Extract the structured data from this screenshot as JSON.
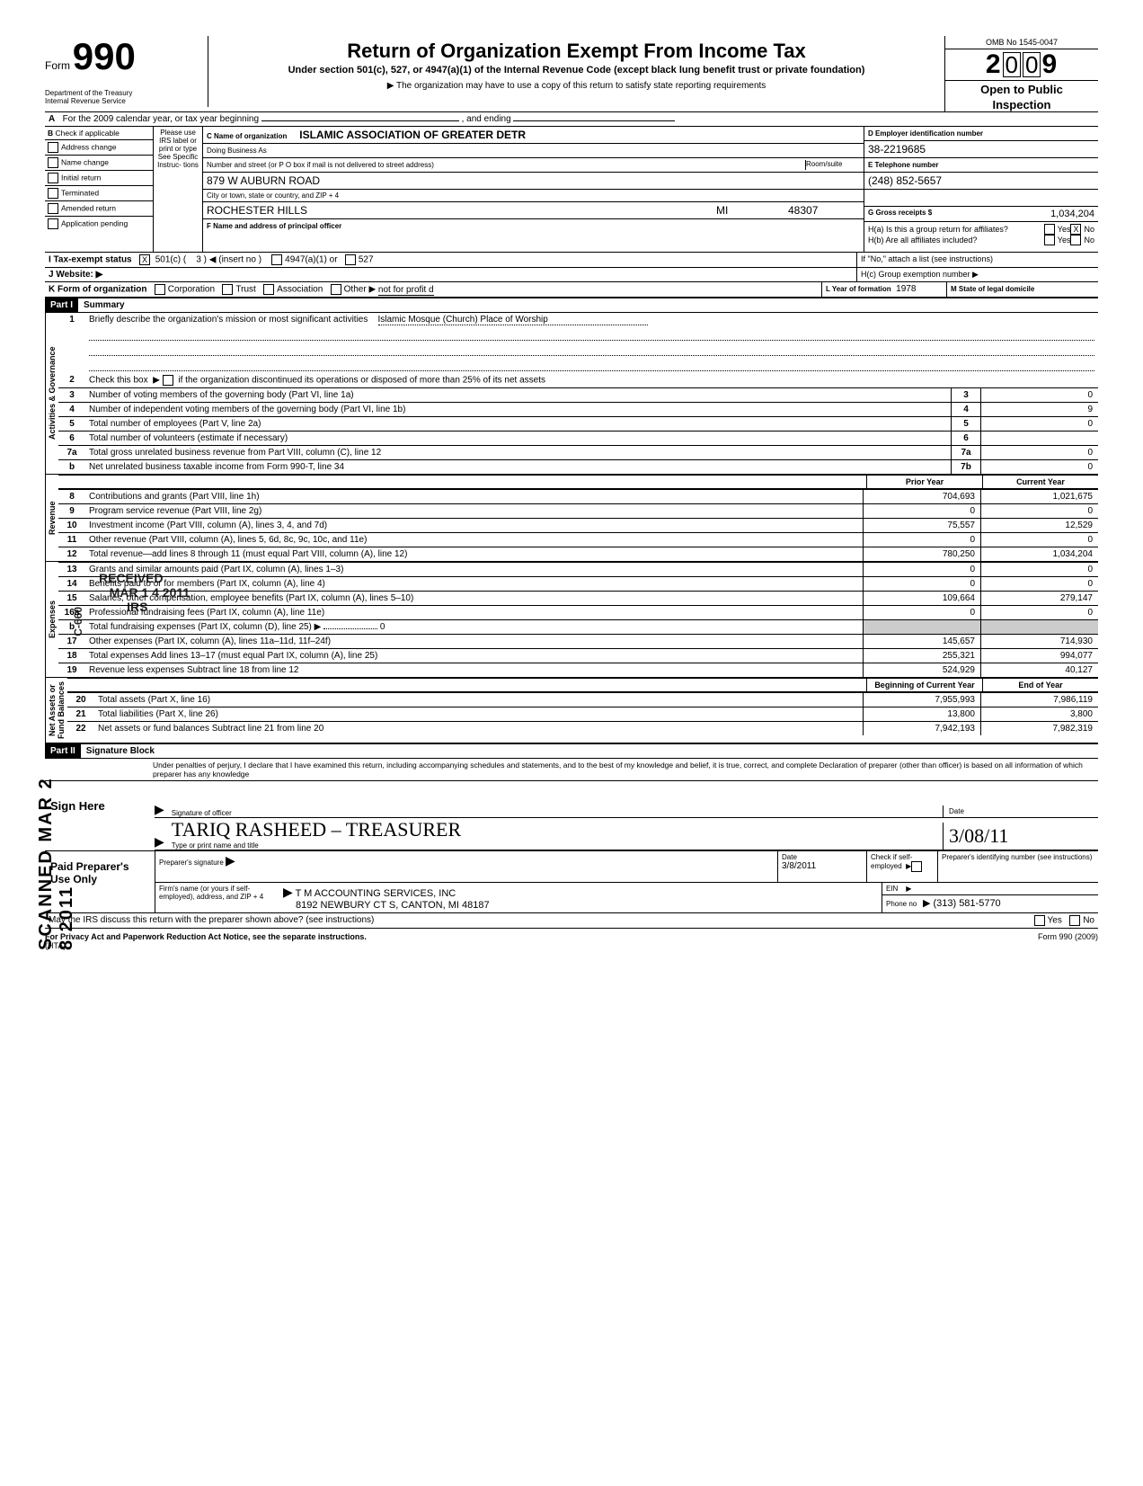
{
  "header": {
    "form_label": "Form",
    "form_number": "990",
    "omb": "OMB No 1545-0047",
    "year_digits": [
      "2",
      "0",
      "0",
      "9"
    ],
    "title": "Return of Organization Exempt From Income Tax",
    "subtitle": "Under section 501(c), 527, or 4947(a)(1) of the Internal Revenue Code (except black lung benefit trust or private foundation)",
    "arrow_note": "▶ The organization may have to use a copy of this return to satisfy state reporting requirements",
    "dept1": "Department of the Treasury",
    "dept2": "Internal Revenue Service",
    "open": "Open to Public",
    "inspection": "Inspection"
  },
  "lineA": {
    "text_pre": "For the 2009 calendar year, or tax year beginning",
    "text_mid": ", and ending"
  },
  "B": {
    "header": "Check if applicable",
    "items": [
      "Address change",
      "Name change",
      "Initial return",
      "Terminated",
      "Amended return",
      "Application pending"
    ],
    "please": "Please use IRS label or print or type See Specific Instruc- tions"
  },
  "C": {
    "label_name": "C  Name of organization",
    "name": "ISLAMIC ASSOCIATION OF GREATER DETR",
    "dba_label": "Doing Business As",
    "street_label": "Number and street (or P O box if mail is not delivered to street address)",
    "room_label": "Room/suite",
    "street": "879 W  AUBURN ROAD",
    "city_label": "City or town, state or country, and ZIP + 4",
    "city": "ROCHESTER HILLS",
    "state": "MI",
    "zip": "48307",
    "F_label": "F    Name and address of principal officer"
  },
  "D": {
    "label": "D   Employer identification number",
    "ein": "38-2219685",
    "E_label": "E   Telephone number",
    "phone": "(248) 852-5657",
    "G_label": "G   Gross receipts $",
    "gross": "1,034,204",
    "Ha": "H(a) Is this a group return for affiliates?",
    "Hb": "H(b) Are all affiliates included?",
    "Hb_note": "If \"No,\" attach a list  (see instructions)",
    "Hc": "H(c) Group exemption number  ▶",
    "yes": "Yes",
    "no": "No",
    "x": "X"
  },
  "I": {
    "label": "I    Tax-exempt status",
    "c501": "501(c) (",
    "insert": "3 ) ◀ (insert no )",
    "a4947": "4947(a)(1) or",
    "s527": "527",
    "x": "X"
  },
  "J": {
    "label": "J   Website: ▶"
  },
  "K": {
    "label": "K  Form of organization",
    "opts": [
      "Corporation",
      "Trust",
      "Association"
    ],
    "other_label": "Other ▶",
    "other_val": "not for profit d",
    "L_label": "L  Year of formation",
    "L_val": "1978",
    "M_label": "M State of legal domicile"
  },
  "part1": {
    "tab": "Part I",
    "title": "Summary",
    "line1_label": "Briefly describe the organization's mission or most significant activities",
    "line1_val": "Islamic Mosque (Church) Place of Worship",
    "line2": "Check this box  ▶        if the organization discontinued its operations or disposed of more than 25% of its net assets",
    "rows_simple": [
      {
        "n": "3",
        "d": "Number of voting members of the governing body (Part VI, line 1a)",
        "k": "3",
        "v": "0"
      },
      {
        "n": "4",
        "d": "Number of independent voting members of the governing body (Part VI, line 1b)",
        "k": "4",
        "v": "9"
      },
      {
        "n": "5",
        "d": "Total number of employees (Part V, line 2a)",
        "k": "5",
        "v": "0"
      },
      {
        "n": "6",
        "d": "Total number of volunteers (estimate if necessary)",
        "k": "6",
        "v": ""
      },
      {
        "n": "7a",
        "d": "Total gross unrelated business revenue from Part VIII, column (C), line 12",
        "k": "7a",
        "v": "0"
      },
      {
        "n": "b",
        "d": "Net unrelated business taxable income from Form 990-T, line 34",
        "k": "7b",
        "v": "0"
      }
    ],
    "prior_label": "Prior Year",
    "current_label": "Current Year",
    "rev_rows": [
      {
        "n": "8",
        "d": "Contributions and grants (Part VIII, line 1h)",
        "p": "704,693",
        "c": "1,021,675"
      },
      {
        "n": "9",
        "d": "Program service revenue (Part VIII, line 2g)",
        "p": "0",
        "c": "0"
      },
      {
        "n": "10",
        "d": "Investment income (Part VIII, column (A), lines 3, 4, and 7d)",
        "p": "75,557",
        "c": "12,529"
      },
      {
        "n": "11",
        "d": "Other revenue (Part VIII, column (A), lines 5, 6d, 8c, 9c, 10c, and 11e)",
        "p": "0",
        "c": "0"
      },
      {
        "n": "12",
        "d": "Total revenue—add lines 8 through 11 (must equal Part VIII, column (A), line 12)",
        "p": "780,250",
        "c": "1,034,204"
      }
    ],
    "exp_rows": [
      {
        "n": "13",
        "d": "Grants and similar amounts paid (Part IX, column (A), lines 1–3)",
        "p": "0",
        "c": "0"
      },
      {
        "n": "14",
        "d": "Benefits paid to or for members (Part IX, column (A), line 4)",
        "p": "0",
        "c": "0"
      },
      {
        "n": "15",
        "d": "Salaries, other compensation, employee benefits (Part IX, column (A), lines 5–10)",
        "p": "109,664",
        "c": "279,147"
      },
      {
        "n": "16a",
        "d": "Professional fundraising fees (Part IX, column (A), line 11e)",
        "p": "0",
        "c": "0"
      },
      {
        "n": "b",
        "d": "Total fundraising expenses (Part IX, column (D), line 25)  ▶",
        "p": "",
        "c": "",
        "inline": "0"
      },
      {
        "n": "17",
        "d": "Other expenses (Part IX, column (A), lines 11a–11d, 11f–24f)",
        "p": "145,657",
        "c": "714,930"
      },
      {
        "n": "18",
        "d": "Total expenses  Add lines 13–17 (must equal Part IX, column (A), line 25)",
        "p": "255,321",
        "c": "994,077"
      },
      {
        "n": "19",
        "d": "Revenue less expenses  Subtract line 18 from line 12",
        "p": "524,929",
        "c": "40,127"
      }
    ],
    "na_header_a": "Beginning of Current Year",
    "na_header_b": "End of Year",
    "na_rows": [
      {
        "n": "20",
        "d": "Total assets (Part X, line 16)",
        "p": "7,955,993",
        "c": "7,986,119"
      },
      {
        "n": "21",
        "d": "Total liabilities (Part X, line 26)",
        "p": "13,800",
        "c": "3,800"
      },
      {
        "n": "22",
        "d": "Net assets or fund balances  Subtract line 21 from line 20",
        "p": "7,942,193",
        "c": "7,982,319"
      }
    ],
    "vlabels": {
      "ag": "Activities & Governance",
      "rev": "Revenue",
      "exp": "Expenses",
      "na": "Net Assets or\nFund Balances"
    }
  },
  "part2": {
    "tab": "Part II",
    "title": "Signature Block",
    "perjury": "Under penalties of perjury, I declare that I have examined this return, including accompanying schedules and statements, and to the best of my knowledge and belief, it is true, correct, and complete  Declaration of preparer (other than officer) is based on all information of which preparer has any knowledge",
    "sign_here": "Sign Here",
    "sig_officer": "Signature of officer",
    "date_label": "Date",
    "typed_name": "TARIQ RASHEED  –   TREASURER",
    "date_val": "3/08/11",
    "type_print": "Type or print name and title",
    "paid": "Paid Preparer's Use Only",
    "prep_sig": "Preparer's signature",
    "prep_date": "Date",
    "prep_date_val": "3/8/2011",
    "check_self": "Check if self- employed",
    "prep_id": "Preparer's identifying number (see instructions)",
    "firm_label": "Firm's name (or yours if self-employed), address, and ZIP + 4",
    "firm_name": "T M  ACCOUNTING SERVICES, INC",
    "firm_addr": "8192 NEWBURY CT S, CANTON, MI 48187",
    "ein_label": "EIN",
    "phone_label": "Phone no",
    "phone_val": "▶  (313) 581-5770",
    "irs_discuss": "May the IRS discuss this return with the preparer shown above? (see instructions)",
    "yes": "Yes",
    "no": "No"
  },
  "footer": {
    "left": "For Privacy Act and Paperwork Reduction Act Notice, see the separate instructions.",
    "hta": "(HTA)",
    "right": "Form 990 (2009)"
  },
  "stamps": {
    "received": "RECEIVED\n   MAR 1 4 2011\n        IRS",
    "scanned": "SCANNED  MAR  2 8  2011",
    "c660": "C-660"
  }
}
